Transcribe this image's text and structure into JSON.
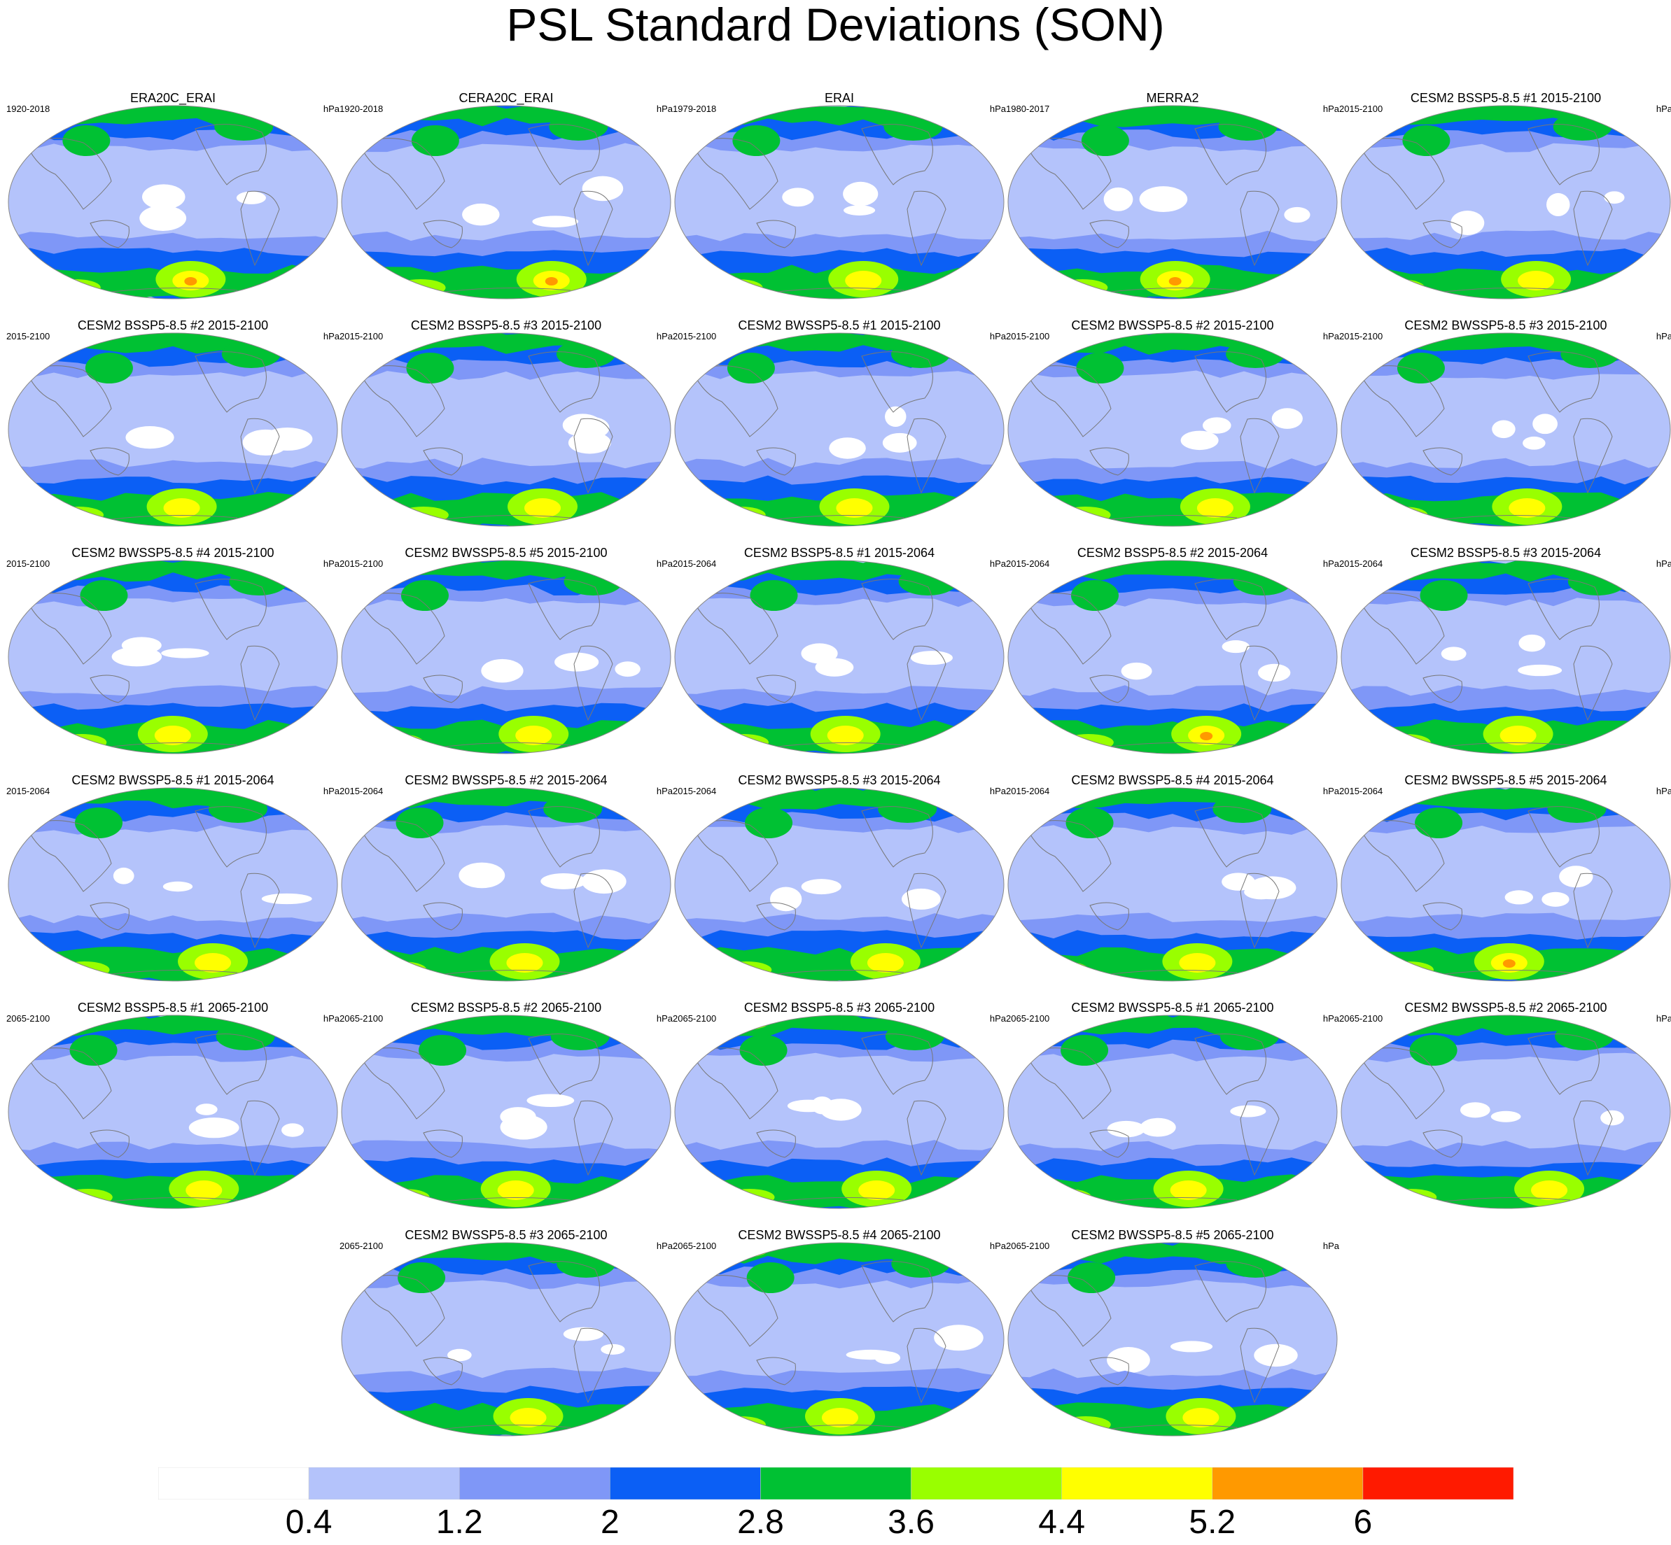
{
  "title": "PSL Standard Deviations (SON)",
  "panels": [
    {
      "title": "ERA20C_ERAI",
      "left": "1920-2018",
      "right": "hPa"
    },
    {
      "title": "CERA20C_ERAI",
      "left": "1920-2018",
      "right": "hPa"
    },
    {
      "title": "ERAI",
      "left": "1979-2018",
      "right": "hPa"
    },
    {
      "title": "MERRA2",
      "left": "1980-2017",
      "right": "hPa"
    },
    {
      "title": "CESM2 BSSP5-8.5 #1 2015-2100",
      "left": "2015-2100",
      "right": "hPa"
    },
    {
      "title": "CESM2 BSSP5-8.5 #2 2015-2100",
      "left": "2015-2100",
      "right": "hPa"
    },
    {
      "title": "CESM2 BSSP5-8.5 #3 2015-2100",
      "left": "2015-2100",
      "right": "hPa"
    },
    {
      "title": "CESM2 BWSSP5-8.5 #1 2015-2100",
      "left": "2015-2100",
      "right": "hPa"
    },
    {
      "title": "CESM2 BWSSP5-8.5 #2 2015-2100",
      "left": "2015-2100",
      "right": "hPa"
    },
    {
      "title": "CESM2 BWSSP5-8.5 #3 2015-2100",
      "left": "2015-2100",
      "right": "hPa"
    },
    {
      "title": "CESM2 BWSSP5-8.5 #4 2015-2100",
      "left": "2015-2100",
      "right": "hPa"
    },
    {
      "title": "CESM2 BWSSP5-8.5 #5 2015-2100",
      "left": "2015-2100",
      "right": "hPa"
    },
    {
      "title": "CESM2 BSSP5-8.5 #1 2015-2064",
      "left": "2015-2064",
      "right": "hPa"
    },
    {
      "title": "CESM2 BSSP5-8.5 #2 2015-2064",
      "left": "2015-2064",
      "right": "hPa"
    },
    {
      "title": "CESM2 BSSP5-8.5 #3 2015-2064",
      "left": "2015-2064",
      "right": "hPa"
    },
    {
      "title": "CESM2 BWSSP5-8.5 #1 2015-2064",
      "left": "2015-2064",
      "right": "hPa"
    },
    {
      "title": "CESM2 BWSSP5-8.5 #2 2015-2064",
      "left": "2015-2064",
      "right": "hPa"
    },
    {
      "title": "CESM2 BWSSP5-8.5 #3 2015-2064",
      "left": "2015-2064",
      "right": "hPa"
    },
    {
      "title": "CESM2 BWSSP5-8.5 #4 2015-2064",
      "left": "2015-2064",
      "right": "hPa"
    },
    {
      "title": "CESM2 BWSSP5-8.5 #5 2015-2064",
      "left": "2015-2064",
      "right": "hPa"
    },
    {
      "title": "CESM2 BSSP5-8.5 #1 2065-2100",
      "left": "2065-2100",
      "right": "hPa"
    },
    {
      "title": "CESM2 BSSP5-8.5 #2 2065-2100",
      "left": "2065-2100",
      "right": "hPa"
    },
    {
      "title": "CESM2 BSSP5-8.5 #3 2065-2100",
      "left": "2065-2100",
      "right": "hPa"
    },
    {
      "title": "CESM2 BWSSP5-8.5 #1 2065-2100",
      "left": "2065-2100",
      "right": "hPa"
    },
    {
      "title": "CESM2 BWSSP5-8.5 #2 2065-2100",
      "left": "2065-2100",
      "right": "hPa"
    },
    {
      "title": "CESM2 BWSSP5-8.5 #3 2065-2100",
      "left": "2065-2100",
      "right": "hPa"
    },
    {
      "title": "CESM2 BWSSP5-8.5 #4 2065-2100",
      "left": "2065-2100",
      "right": "hPa"
    },
    {
      "title": "CESM2 BWSSP5-8.5 #5 2065-2100",
      "left": "2065-2100",
      "right": "hPa"
    }
  ],
  "colorbar": {
    "labels": [
      "0.4",
      "1.2",
      "2",
      "2.8",
      "3.6",
      "4.4",
      "5.2",
      "6"
    ],
    "colors": [
      "#ffffff",
      "#b4c3fb",
      "#7f97f7",
      "#0b5ff5",
      "#00c133",
      "#99ff00",
      "#ffff00",
      "#ff9900",
      "#ff1a00"
    ]
  }
}
